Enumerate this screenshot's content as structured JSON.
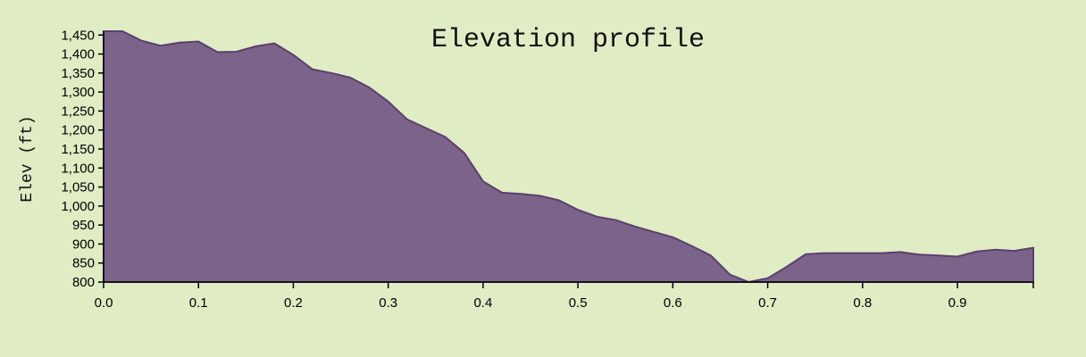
{
  "chart_data": {
    "type": "area",
    "title": "Elevation profile",
    "xlabel": "",
    "ylabel": "Elev (ft)",
    "xlim": [
      0,
      0.98
    ],
    "ylim": [
      800,
      1460
    ],
    "x_ticks": [
      "0.0",
      "0.1",
      "0.2",
      "0.3",
      "0.4",
      "0.5",
      "0.6",
      "0.7",
      "0.8",
      "0.9"
    ],
    "y_ticks": [
      "800",
      "850",
      "900",
      "950",
      "1,000",
      "1,050",
      "1,100",
      "1,150",
      "1,200",
      "1,250",
      "1,300",
      "1,350",
      "1,400",
      "1,450"
    ],
    "colors": {
      "fill": "#7b6389",
      "stroke": "#5c3f6e",
      "background": "#e0ecc4"
    },
    "series": [
      {
        "x": [
          0,
          0.02,
          0.04,
          0.06,
          0.08,
          0.1,
          0.12,
          0.14,
          0.16,
          0.18,
          0.2,
          0.22,
          0.24,
          0.26,
          0.28,
          0.3,
          0.32,
          0.34,
          0.36,
          0.38,
          0.4,
          0.42,
          0.44,
          0.46,
          0.48,
          0.5,
          0.52,
          0.54,
          0.56,
          0.58,
          0.6,
          0.62,
          0.64,
          0.66,
          0.68,
          0.7,
          0.72,
          0.74,
          0.76,
          0.78,
          0.8,
          0.82,
          0.84,
          0.86,
          0.88,
          0.9,
          0.92,
          0.94,
          0.96,
          0.98
        ],
        "values": [
          1460,
          1460,
          1435,
          1422,
          1430,
          1433,
          1405,
          1406,
          1420,
          1428,
          1398,
          1360,
          1350,
          1338,
          1312,
          1275,
          1228,
          1205,
          1182,
          1140,
          1065,
          1035,
          1032,
          1027,
          1015,
          990,
          972,
          963,
          946,
          932,
          918,
          895,
          870,
          820,
          800,
          810,
          840,
          873,
          876,
          876,
          876,
          876,
          879,
          872,
          870,
          867,
          880,
          885,
          882,
          890
        ]
      }
    ]
  }
}
